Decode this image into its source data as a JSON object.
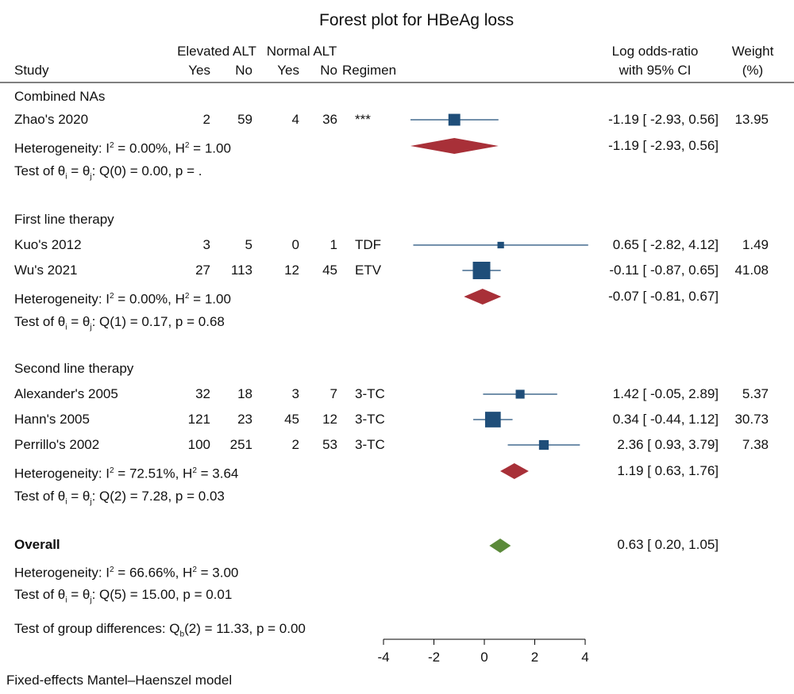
{
  "chart_data": {
    "type": "forest",
    "title": "Forest plot for HBeAg loss",
    "header": {
      "study": "Study",
      "group1": "Elevated ALT",
      "group2": "Normal ALT",
      "yes": "Yes",
      "no": "No",
      "regimen": "Regimen",
      "effect_line1": "Log odds-ratio",
      "effect_line2": "with 95% CI",
      "weight_line1": "Weight",
      "weight_line2": "(%)"
    },
    "xlim": [
      -4,
      4
    ],
    "xticks": [
      -4,
      -2,
      0,
      2,
      4
    ],
    "colors": {
      "study": "#1f4e79",
      "subgroup": "#a83038",
      "overall": "#5b8a3a"
    },
    "groups": [
      {
        "name": "Combined NAs",
        "studies": [
          {
            "study": "Zhao's 2020",
            "e_yes": "2",
            "e_no": "59",
            "n_yes": "4",
            "n_no": "36",
            "regimen": "***",
            "est": -1.19,
            "lo": -2.93,
            "hi": 0.56,
            "ci_text": "-1.19 [ -2.93,  0.56]",
            "weight": 13.95,
            "weight_text": "13.95"
          }
        ],
        "summary": {
          "est": -1.19,
          "lo": -2.93,
          "hi": 0.56,
          "ci_text": "-1.19 [ -2.93,  0.56]"
        },
        "heterogeneity": {
          "prefix": "Heterogeneity: I",
          "mid": " = 0.00%, H",
          "suffix": " = 1.00",
          "sup": "2"
        },
        "test": {
          "prefix": "Test of θ",
          "sub_i": "i",
          "mid": " = θ",
          "sub_j": "j",
          "suffix": ": Q(0) = 0.00, p = ."
        }
      },
      {
        "name": "First line therapy",
        "studies": [
          {
            "study": "Kuo's 2012",
            "e_yes": "3",
            "e_no": "5",
            "n_yes": "0",
            "n_no": "1",
            "regimen": "TDF",
            "est": 0.65,
            "lo": -2.82,
            "hi": 4.12,
            "ci_text": "0.65 [ -2.82,  4.12]",
            "weight": 1.49,
            "weight_text": "1.49"
          },
          {
            "study": "Wu's 2021",
            "e_yes": "27",
            "e_no": "113",
            "n_yes": "12",
            "n_no": "45",
            "regimen": "ETV",
            "est": -0.11,
            "lo": -0.87,
            "hi": 0.65,
            "ci_text": "-0.11 [ -0.87,  0.65]",
            "weight": 41.08,
            "weight_text": "41.08"
          }
        ],
        "summary": {
          "est": -0.07,
          "lo": -0.81,
          "hi": 0.67,
          "ci_text": "-0.07 [ -0.81,  0.67]"
        },
        "heterogeneity": {
          "prefix": "Heterogeneity: I",
          "mid": " = 0.00%, H",
          "suffix": " = 1.00",
          "sup": "2"
        },
        "test": {
          "prefix": "Test of θ",
          "sub_i": "i",
          "mid": " = θ",
          "sub_j": "j",
          "suffix": ": Q(1) = 0.17, p = 0.68"
        }
      },
      {
        "name": "Second line therapy",
        "studies": [
          {
            "study": "Alexander's 2005",
            "e_yes": "32",
            "e_no": "18",
            "n_yes": "3",
            "n_no": "7",
            "regimen": "3-TC",
            "est": 1.42,
            "lo": -0.05,
            "hi": 2.89,
            "ci_text": "1.42 [ -0.05,  2.89]",
            "weight": 5.37,
            "weight_text": "5.37"
          },
          {
            "study": "Hann's 2005",
            "e_yes": "121",
            "e_no": "23",
            "n_yes": "45",
            "n_no": "12",
            "regimen": "3-TC",
            "est": 0.34,
            "lo": -0.44,
            "hi": 1.12,
            "ci_text": "0.34 [ -0.44,  1.12]",
            "weight": 30.73,
            "weight_text": "30.73"
          },
          {
            "study": "Perrillo's 2002",
            "e_yes": "100",
            "e_no": "251",
            "n_yes": "2",
            "n_no": "53",
            "regimen": "3-TC",
            "est": 2.36,
            "lo": 0.93,
            "hi": 3.79,
            "ci_text": "2.36 [  0.93,  3.79]",
            "weight": 7.38,
            "weight_text": "7.38"
          }
        ],
        "summary": {
          "est": 1.19,
          "lo": 0.63,
          "hi": 1.76,
          "ci_text": "1.19 [  0.63,  1.76]"
        },
        "heterogeneity": {
          "prefix": "Heterogeneity: I",
          "mid": " = 72.51%, H",
          "suffix": " = 3.64",
          "sup": "2"
        },
        "test": {
          "prefix": "Test of θ",
          "sub_i": "i",
          "mid": " = θ",
          "sub_j": "j",
          "suffix": ": Q(2) = 7.28, p = 0.03"
        }
      }
    ],
    "overall": {
      "label": "Overall",
      "est": 0.63,
      "lo": 0.2,
      "hi": 1.05,
      "ci_text": "0.63 [  0.20,  1.05]",
      "heterogeneity": {
        "prefix": "Heterogeneity: I",
        "mid": " = 66.66%, H",
        "suffix": " = 3.00",
        "sup": "2"
      },
      "test": {
        "prefix": "Test of θ",
        "sub_i": "i",
        "mid": " = θ",
        "sub_j": "j",
        "suffix": ": Q(5) = 15.00, p = 0.01"
      },
      "group_diff": {
        "prefix": "Test of group differences: Q",
        "sub": "b",
        "suffix": "(2) = 11.33, p = 0.00"
      }
    },
    "footnote": "Fixed-effects Mantel–Haenszel model"
  }
}
